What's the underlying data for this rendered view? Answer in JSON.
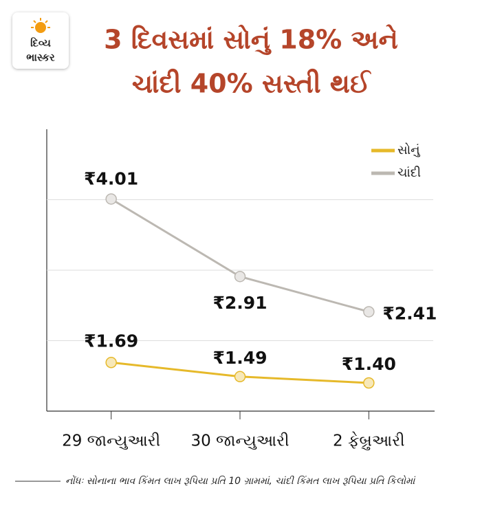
{
  "logo": {
    "line1": "દિવ્ય",
    "line2": "ભાસ્કર"
  },
  "chart_data": {
    "type": "line",
    "title": [
      "3 દિવસમાં સોનું 18% અને",
      "ચાંદી 40% સસ્તી થઈ"
    ],
    "categories": [
      "29 જાન્યુઆરી",
      "30 જાન્યુઆરી",
      "2 ફેબ્રુઆરી"
    ],
    "series": [
      {
        "name": "સોનું",
        "color": "#e6b92a",
        "values": [
          1.69,
          1.49,
          1.4
        ],
        "value_labels": [
          "₹1.69",
          "₹1.49",
          "₹1.40"
        ]
      },
      {
        "name": "ચાંદી",
        "color": "#bcb8b2",
        "values": [
          4.01,
          2.91,
          2.41
        ],
        "value_labels": [
          "₹4.01",
          "₹2.91",
          "₹2.41"
        ]
      }
    ],
    "ylim": [
      1,
      5
    ],
    "yticks": [
      2,
      3,
      4
    ],
    "show_ytick_labels": false,
    "grid": true,
    "legend": "top-right",
    "note": "નોંધઃ સોનાના ભાવ કિંમત લાખ રૂપિયા પ્રતિ 10 ગ્રામમાં, ચાંદી કિંમત લાખ રૂપિયા પ્રતિ કિલોમાં"
  }
}
